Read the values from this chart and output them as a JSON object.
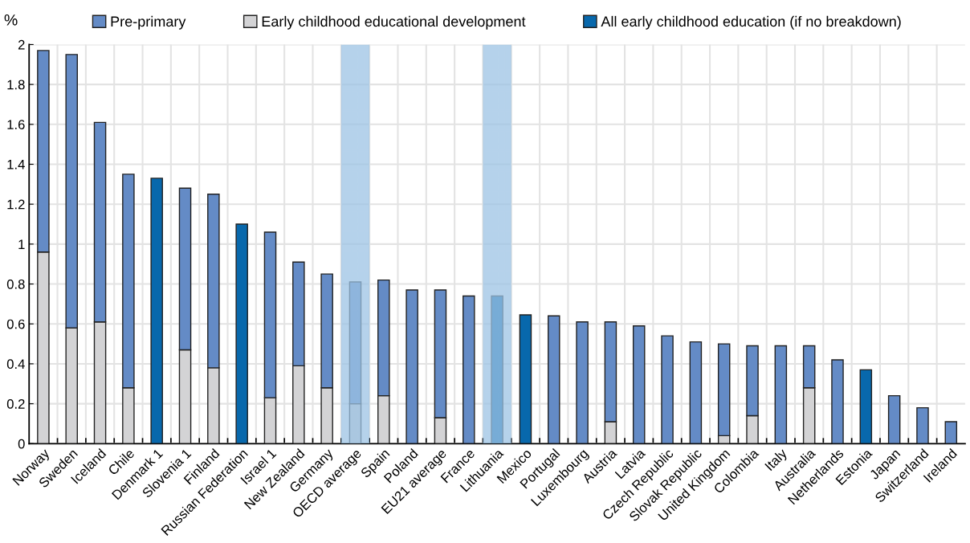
{
  "chart_data": {
    "type": "bar",
    "stacked": true,
    "ylabel": "%",
    "categories": [
      "Norway",
      "Sweden",
      "Iceland",
      "Chile",
      "Denmark 1",
      "Slovenia 1",
      "Finland",
      "Russian Federation",
      "Israel 1",
      "New Zealand",
      "Germany",
      "OECD average",
      "Spain",
      "Poland",
      "EU21 average",
      "France",
      "Lithuania",
      "Mexico",
      "Portugal",
      "Luxembourg",
      "Austria",
      "Latvia",
      "Czech Republic",
      "Slovak Republic",
      "United Kingdom",
      "Colombia",
      "Italy",
      "Australia",
      "Netherlands",
      "Estonia",
      "Japan",
      "Switzerland",
      "Ireland"
    ],
    "series": [
      {
        "name": "Early childhood educational development",
        "color": "#d3d3d5",
        "values": [
          0.96,
          0.58,
          0.61,
          0.28,
          null,
          0.47,
          0.38,
          null,
          0.23,
          0.39,
          0.28,
          0.2,
          0.24,
          null,
          0.13,
          null,
          null,
          null,
          null,
          null,
          0.11,
          null,
          null,
          null,
          0.04,
          0.14,
          null,
          0.28,
          null,
          null,
          null,
          null,
          null
        ]
      },
      {
        "name": "Pre-primary",
        "color": "#648bc6",
        "values": [
          1.01,
          1.37,
          1.0,
          1.07,
          null,
          0.81,
          0.87,
          null,
          0.83,
          0.52,
          0.57,
          0.61,
          0.58,
          0.77,
          0.64,
          0.74,
          null,
          null,
          0.64,
          0.61,
          0.5,
          0.59,
          0.54,
          0.51,
          0.46,
          0.35,
          0.49,
          0.21,
          0.42,
          null,
          0.24,
          0.18,
          0.11
        ]
      },
      {
        "name": "All early childhood education (if no breakdown)",
        "color": "#0868ac",
        "values": [
          null,
          null,
          null,
          null,
          1.33,
          null,
          null,
          1.1,
          null,
          null,
          null,
          null,
          null,
          null,
          null,
          null,
          0.74,
          0.645,
          null,
          null,
          null,
          null,
          null,
          null,
          null,
          null,
          null,
          null,
          null,
          0.37,
          null,
          null,
          null
        ]
      }
    ],
    "bands": [
      {
        "axis": "x",
        "from": "OECD average",
        "to": "OECD average",
        "color": "#9cc3e4"
      },
      {
        "axis": "x",
        "from": "Lithuania",
        "to": "Lithuania",
        "color": "#9cc3e4"
      }
    ],
    "ylim": [
      0,
      2
    ],
    "yticks": [
      0,
      0.2,
      0.4,
      0.6,
      0.8,
      1,
      1.2,
      1.4,
      1.6,
      1.8,
      2
    ],
    "grid": true,
    "legend": "top"
  }
}
